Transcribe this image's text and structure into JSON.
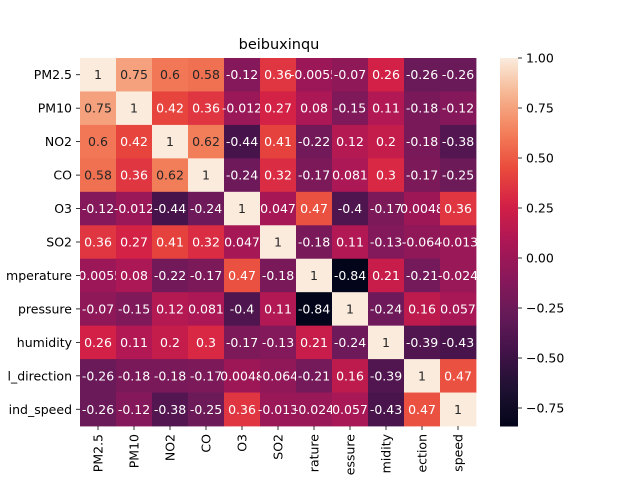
{
  "chart_data": {
    "type": "heatmap",
    "title": "beibuxinqu",
    "xlabel": "",
    "ylabel": "",
    "row_labels": [
      "PM2.5",
      "PM10",
      "NO2",
      "CO",
      "O3",
      "SO2",
      "mperature",
      "pressure",
      "humidity",
      "l_direction",
      "ind_speed"
    ],
    "col_labels": [
      "PM2.5",
      "PM10",
      "NO2",
      "CO",
      "O3",
      "SO2",
      "rature",
      "essure",
      "midity",
      "ection",
      "speed"
    ],
    "values": [
      [
        1,
        0.75,
        0.6,
        0.58,
        -0.12,
        0.36,
        -0.0055,
        -0.07,
        0.26,
        -0.26,
        -0.26
      ],
      [
        0.75,
        1,
        0.42,
        0.36,
        -0.012,
        0.27,
        0.08,
        -0.15,
        0.11,
        -0.18,
        -0.12
      ],
      [
        0.6,
        0.42,
        1,
        0.62,
        -0.44,
        0.41,
        -0.22,
        0.12,
        0.2,
        -0.18,
        -0.38
      ],
      [
        0.58,
        0.36,
        0.62,
        1,
        -0.24,
        0.32,
        -0.17,
        0.081,
        0.3,
        -0.17,
        -0.25
      ],
      [
        -0.12,
        -0.012,
        -0.44,
        -0.24,
        1,
        0.047,
        0.47,
        -0.4,
        -0.17,
        0.0048,
        0.36
      ],
      [
        0.36,
        0.27,
        0.41,
        0.32,
        0.047,
        1,
        -0.18,
        0.11,
        -0.13,
        -0.064,
        -0.013
      ],
      [
        -0.0055,
        0.08,
        -0.22,
        -0.17,
        0.47,
        -0.18,
        1,
        -0.84,
        0.21,
        -0.21,
        -0.024
      ],
      [
        -0.07,
        -0.15,
        0.12,
        0.081,
        -0.4,
        0.11,
        -0.84,
        1,
        -0.24,
        0.16,
        0.057
      ],
      [
        0.26,
        0.11,
        0.2,
        0.3,
        -0.17,
        -0.13,
        0.21,
        -0.24,
        1,
        -0.39,
        -0.43
      ],
      [
        -0.26,
        -0.18,
        -0.18,
        -0.17,
        0.0048,
        -0.064,
        -0.21,
        0.16,
        -0.39,
        1,
        0.47
      ],
      [
        -0.26,
        -0.12,
        -0.38,
        -0.25,
        0.36,
        -0.013,
        -0.024,
        0.057,
        -0.43,
        0.47,
        1
      ]
    ],
    "value_labels": [
      [
        "1",
        "0.75",
        "0.6",
        "0.58",
        "-0.12",
        "0.36",
        "-0.0055",
        "-0.07",
        "0.26",
        "-0.26",
        "-0.26"
      ],
      [
        "0.75",
        "1",
        "0.42",
        "0.36",
        "-0.012",
        "0.27",
        "0.08",
        "-0.15",
        "0.11",
        "-0.18",
        "-0.12"
      ],
      [
        "0.6",
        "0.42",
        "1",
        "0.62",
        "-0.44",
        "0.41",
        "-0.22",
        "0.12",
        "0.2",
        "-0.18",
        "-0.38"
      ],
      [
        "0.58",
        "0.36",
        "0.62",
        "1",
        "-0.24",
        "0.32",
        "-0.17",
        "0.081",
        "0.3",
        "-0.17",
        "-0.25"
      ],
      [
        "-0.12",
        "-0.012",
        "-0.44",
        "-0.24",
        "1",
        "0.047",
        "0.47",
        "-0.4",
        "-0.17",
        "0.0048",
        "0.36"
      ],
      [
        "0.36",
        "0.27",
        "0.41",
        "0.32",
        "0.047",
        "1",
        "-0.18",
        "0.11",
        "-0.13",
        "-0.064",
        "-0.013"
      ],
      [
        "-0.0055",
        "0.08",
        "-0.22",
        "-0.17",
        "0.47",
        "-0.18",
        "1",
        "-0.84",
        "0.21",
        "-0.21",
        "-0.024"
      ],
      [
        "-0.07",
        "-0.15",
        "0.12",
        "0.081",
        "-0.4",
        "0.11",
        "-0.84",
        "1",
        "-0.24",
        "0.16",
        "0.057"
      ],
      [
        "0.26",
        "0.11",
        "0.2",
        "0.3",
        "-0.17",
        "-0.13",
        "0.21",
        "-0.24",
        "1",
        "-0.39",
        "-0.43"
      ],
      [
        "-0.26",
        "-0.18",
        "-0.18",
        "-0.17",
        "0.0048",
        "-0.064",
        "-0.21",
        "0.16",
        "-0.39",
        "1",
        "0.47"
      ],
      [
        "-0.26",
        "-0.12",
        "-0.38",
        "-0.25",
        "0.36",
        "-0.013",
        "-0.024",
        "0.057",
        "-0.43",
        "0.47",
        "1"
      ]
    ],
    "colorbar": {
      "range": [
        -0.84,
        1
      ],
      "ticks": [
        1.0,
        0.75,
        0.5,
        0.25,
        0.0,
        -0.25,
        -0.5,
        -0.75
      ],
      "tick_labels": [
        "1.00",
        "0.75",
        "0.50",
        "0.25",
        "0.00",
        "−0.25",
        "−0.50",
        "−0.75"
      ],
      "colormap": "rocket",
      "legend_position": "right"
    }
  }
}
